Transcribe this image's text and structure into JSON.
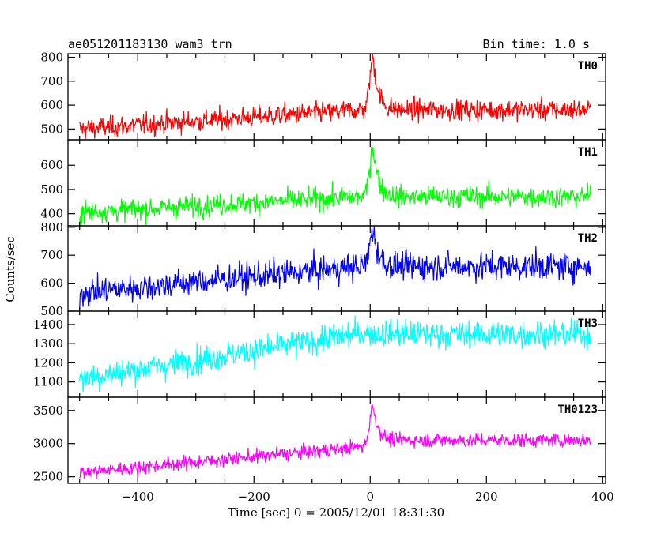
{
  "chart_data": {
    "type": "line",
    "title": "ae051201183130_wam3_trn",
    "subtitle": "Bin time: 1.0 s",
    "xlabel": "Time [sec] 0 = 2005/12/01 18:31:30",
    "ylabel": "Counts/sec",
    "xlim": [
      -520,
      405
    ],
    "xticks": [
      -400,
      -200,
      0,
      200,
      400
    ],
    "x_data_range": [
      -500,
      380
    ],
    "bin_time_s": 1.0,
    "peak_time": 5,
    "grid": false,
    "panels": [
      {
        "name": "TH0",
        "color": "#ff0000",
        "ylim": [
          455,
          815
        ],
        "yticks": [
          500,
          600,
          700,
          800
        ],
        "baseline_start": 500,
        "baseline_end": 580,
        "noise": 25,
        "peak": 800,
        "post_burst": 580
      },
      {
        "name": "TH1",
        "color": "#00ff00",
        "ylim": [
          350,
          705
        ],
        "yticks": [
          400,
          500,
          600
        ],
        "baseline_start": 405,
        "baseline_end": 470,
        "noise": 25,
        "peak": 680,
        "post_burst": 470
      },
      {
        "name": "TH2",
        "color": "#0000ff",
        "ylim": [
          500,
          805
        ],
        "yticks": [
          500,
          600,
          700,
          800
        ],
        "baseline_start": 565,
        "baseline_end": 660,
        "noise": 28,
        "peak": 790,
        "post_burst": 660
      },
      {
        "name": "TH3",
        "color": "#00ffff",
        "ylim": [
          1020,
          1470
        ],
        "yticks": [
          1100,
          1200,
          1300,
          1400
        ],
        "baseline_start": 1115,
        "baseline_end": 1355,
        "noise": 40,
        "peak": 1360,
        "post_burst": 1350
      },
      {
        "name": "TH0123",
        "color": "#ff00ff",
        "ylim": [
          2400,
          3700
        ],
        "yticks": [
          2500,
          3000,
          3500
        ],
        "baseline_start": 2560,
        "baseline_end": 2950,
        "noise": 60,
        "peak": 3520,
        "post_burst": 3050
      }
    ]
  }
}
